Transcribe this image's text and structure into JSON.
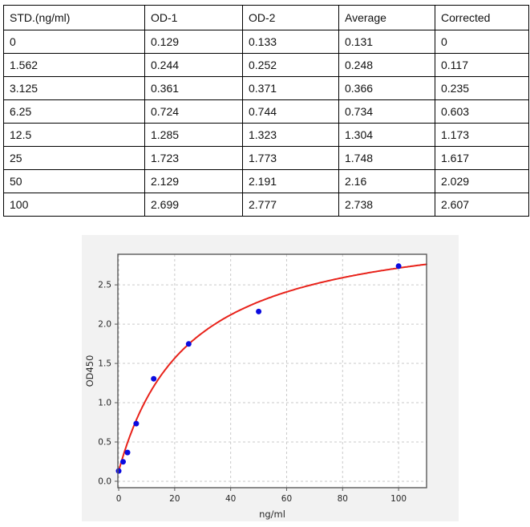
{
  "table": {
    "columns": [
      "STD.(ng/ml)",
      "OD-1",
      "OD-2",
      "Average",
      "Corrected"
    ],
    "rows": [
      [
        "0",
        "0.129",
        "0.133",
        "0.131",
        "0"
      ],
      [
        "1.562",
        "0.244",
        "0.252",
        "0.248",
        "0.117"
      ],
      [
        "3.125",
        "0.361",
        "0.371",
        "0.366",
        "0.235"
      ],
      [
        "6.25",
        "0.724",
        "0.744",
        "0.734",
        "0.603"
      ],
      [
        "12.5",
        "1.285",
        "1.323",
        "1.304",
        "1.173"
      ],
      [
        "25",
        "1.723",
        "1.773",
        "1.748",
        "1.617"
      ],
      [
        "50",
        "2.129",
        "2.191",
        "2.16",
        "2.029"
      ],
      [
        "100",
        "2.699",
        "2.777",
        "2.738",
        "2.607"
      ]
    ]
  },
  "chart_data": {
    "type": "scatter",
    "title": "",
    "xlabel": "ng/ml",
    "ylabel": "OD450",
    "x": [
      0,
      1.562,
      3.125,
      6.25,
      12.5,
      25,
      50,
      100
    ],
    "y": [
      0.131,
      0.248,
      0.366,
      0.734,
      1.304,
      1.748,
      2.16,
      2.738
    ],
    "fit": {
      "model": "y = c + a*x/(b+x)",
      "a": 3.23,
      "b": 25,
      "c": 0.13,
      "x_start": 0,
      "x_end": 110
    },
    "xlim": [
      -0.3,
      110
    ],
    "ylim": [
      -0.082,
      2.889
    ],
    "xticks": [
      0,
      20,
      40,
      60,
      80,
      100
    ],
    "xtick_labels": [
      "0",
      "20",
      "40",
      "60",
      "80",
      "100"
    ],
    "yticks": [
      0.0,
      0.5,
      1.0,
      1.5,
      2.0,
      2.5
    ],
    "ytick_labels": [
      "0.0",
      "0.5",
      "1.0",
      "1.5",
      "2.0",
      "2.5"
    ],
    "grid": true,
    "legend": null,
    "colors": {
      "points": "#0b0be0",
      "curve": "#e8221a",
      "figure_bg": "#f2f2f2",
      "plot_bg": "#ffffff",
      "grid": "#c9c9c9",
      "spine": "#5a5a5a",
      "tick_text": "#262626"
    }
  }
}
